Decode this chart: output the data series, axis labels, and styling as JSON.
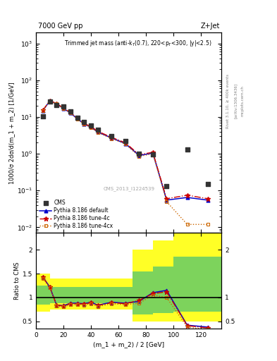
{
  "title_left": "7000 GeV pp",
  "title_right": "Z+Jet",
  "annotation": "Trimmed jet mass (anti-k$_T$(0.7), 220<p$_T$<300, |y|<2.5)",
  "cms_label": "CMS_2013_I1224539",
  "rivet_label": "Rivet 3.1.10, ≥ 400k events",
  "arxiv_label": "[arXiv:1306.3436]",
  "mcplots_label": "mcplots.cern.ch",
  "ylabel_main": "1000/σ 2dσ/d(m_1 + m_2) [1/GeV]",
  "ylabel_ratio": "Ratio to CMS",
  "xlabel": "(m_1 + m_2) / 2 [GeV]",
  "ylim_main": [
    0.007,
    2000
  ],
  "ylim_ratio": [
    0.35,
    2.35
  ],
  "xlim": [
    0,
    135
  ],
  "cms_x": [
    5,
    10,
    15,
    20,
    25,
    30,
    35,
    40,
    45,
    55,
    65,
    75,
    85,
    95,
    110,
    125
  ],
  "cms_y": [
    10.5,
    27.0,
    21.0,
    19.0,
    14.0,
    9.5,
    7.5,
    6.0,
    4.5,
    3.0,
    2.2,
    1.0,
    0.95,
    0.13,
    1.3,
    0.15
  ],
  "pythia_default_x": [
    5,
    10,
    15,
    20,
    25,
    30,
    35,
    40,
    45,
    55,
    65,
    75,
    85,
    95,
    110,
    125
  ],
  "pythia_default_y": [
    15.0,
    27.5,
    23.0,
    17.0,
    13.0,
    9.0,
    6.5,
    5.3,
    3.9,
    2.7,
    1.9,
    0.9,
    1.05,
    0.055,
    0.065,
    0.055
  ],
  "pythia_4c_x": [
    5,
    10,
    15,
    20,
    25,
    30,
    35,
    40,
    45,
    55,
    65,
    75,
    85,
    95,
    110,
    125
  ],
  "pythia_4c_y": [
    15.5,
    27.8,
    23.5,
    17.5,
    13.5,
    9.2,
    6.7,
    5.5,
    4.1,
    2.8,
    2.0,
    0.95,
    1.1,
    0.06,
    0.075,
    0.06
  ],
  "pythia_4cx_x": [
    5,
    10,
    15,
    20,
    25,
    30,
    35,
    40,
    45,
    55,
    65,
    75,
    85,
    95,
    110,
    125
  ],
  "pythia_4cx_y": [
    15.2,
    27.2,
    22.8,
    17.2,
    13.2,
    8.9,
    6.4,
    5.2,
    3.8,
    2.6,
    1.85,
    0.85,
    1.0,
    0.05,
    0.012,
    0.012
  ],
  "ratio_default_x": [
    5,
    10,
    15,
    20,
    25,
    30,
    35,
    40,
    45,
    55,
    65,
    75,
    85,
    95,
    110,
    125
  ],
  "ratio_default_y": [
    1.43,
    1.22,
    0.84,
    0.83,
    0.88,
    0.88,
    0.87,
    0.9,
    0.84,
    0.9,
    0.88,
    0.92,
    1.1,
    1.15,
    0.42,
    0.38
  ],
  "ratio_4c_x": [
    5,
    10,
    15,
    20,
    25,
    30,
    35,
    40,
    45,
    55,
    65,
    75,
    85,
    95,
    110,
    125
  ],
  "ratio_4c_y": [
    1.42,
    1.22,
    0.84,
    0.82,
    0.87,
    0.87,
    0.86,
    0.89,
    0.83,
    0.89,
    0.87,
    0.94,
    1.08,
    1.12,
    0.41,
    0.36
  ],
  "ratio_4cx_x": [
    5,
    10,
    15,
    20,
    25,
    30,
    35,
    40,
    45,
    55,
    65,
    75,
    85,
    95,
    110,
    125
  ],
  "ratio_4cx_y": [
    1.4,
    1.2,
    0.82,
    0.8,
    0.85,
    0.85,
    0.84,
    0.87,
    0.81,
    0.87,
    0.85,
    0.88,
    1.05,
    1.0,
    0.38,
    0.33
  ],
  "band_yellow_edges": [
    0,
    10,
    20,
    30,
    50,
    70,
    85,
    100,
    120,
    135
  ],
  "band_yellow_lo": [
    0.7,
    0.75,
    0.75,
    0.75,
    0.75,
    0.5,
    0.5,
    0.5,
    0.5,
    0.5
  ],
  "band_yellow_hi": [
    1.5,
    1.4,
    1.4,
    1.4,
    1.4,
    2.0,
    2.2,
    2.5,
    2.5,
    2.5
  ],
  "band_green_edges": [
    0,
    10,
    20,
    30,
    50,
    70,
    85,
    100,
    120,
    135
  ],
  "band_green_lo": [
    0.85,
    0.88,
    0.88,
    0.88,
    0.88,
    0.65,
    0.68,
    0.7,
    0.7,
    0.7
  ],
  "band_green_hi": [
    1.25,
    1.22,
    1.22,
    1.22,
    1.22,
    1.55,
    1.65,
    1.85,
    1.85,
    1.85
  ],
  "color_cms": "#333333",
  "color_default": "#0000cc",
  "color_4c": "#cc0000",
  "color_4cx": "#cc6600",
  "bg_color": "#ffffff"
}
